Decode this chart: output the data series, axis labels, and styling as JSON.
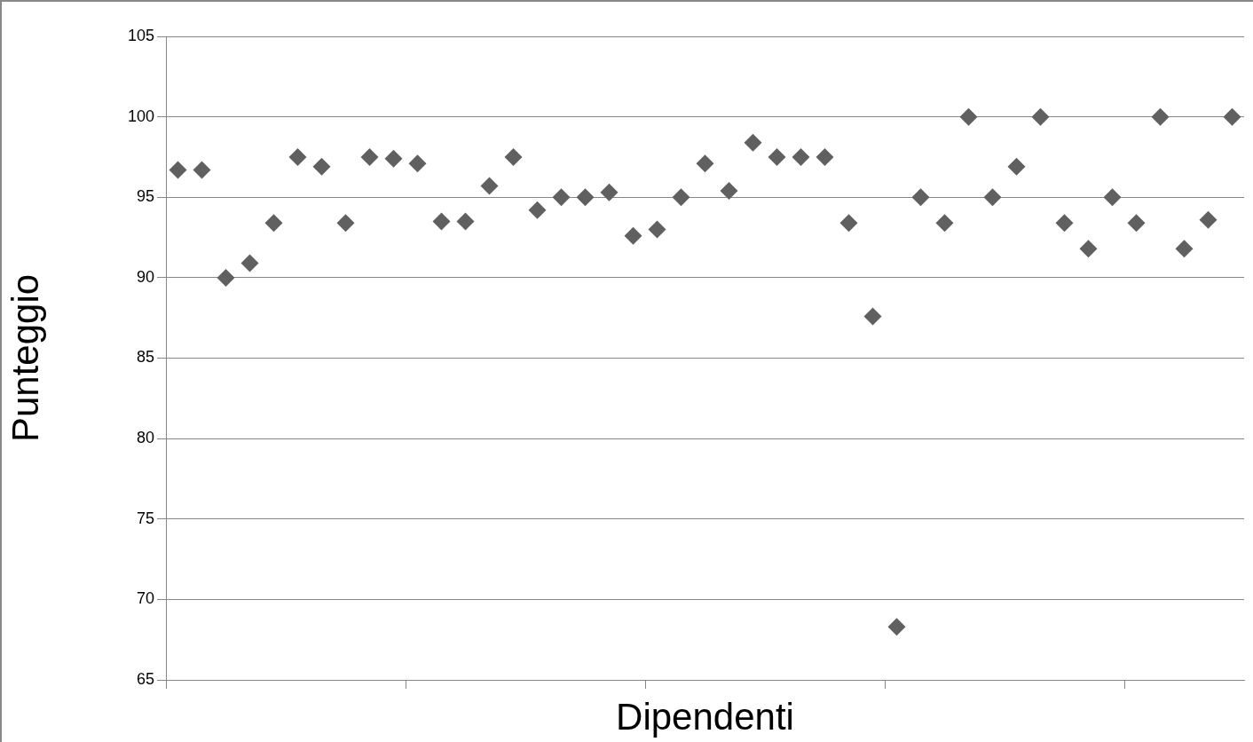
{
  "chart_data": {
    "type": "scatter",
    "xlabel": "Dipendenti",
    "ylabel": "Punteggio",
    "categories": [
      null,
      null,
      null,
      null,
      null,
      null,
      null,
      null,
      null,
      null,
      null,
      null,
      null,
      null,
      null,
      null,
      null,
      null,
      null,
      null,
      null,
      null,
      null,
      null,
      null,
      null,
      null,
      null,
      null,
      null,
      null,
      null,
      null,
      null,
      null,
      null,
      null,
      null,
      null,
      null,
      null,
      null,
      null,
      null,
      null
    ],
    "series": [
      {
        "color": "#606060",
        "values": [
          96.7,
          96.7,
          90,
          90.9,
          93.4,
          97.5,
          96.9,
          93.4,
          97.5,
          97.4,
          97.1,
          93.5,
          93.5,
          95.7,
          97.5,
          94.2,
          95,
          95,
          95.3,
          92.6,
          93,
          95,
          97.1,
          95.4,
          98.4,
          97.5,
          97.5,
          97.5,
          93.4,
          87.6,
          68.3,
          95,
          93.4,
          100,
          95,
          96.9,
          100,
          93.4,
          91.8,
          95,
          93.4,
          100,
          91.8,
          93.6,
          100
        ]
      }
    ],
    "ylim": [
      65,
      105
    ],
    "yticks": [
      65,
      70,
      75,
      80,
      85,
      90,
      95,
      100,
      105
    ],
    "grid": "y",
    "legend": false,
    "marker": "diamond"
  }
}
